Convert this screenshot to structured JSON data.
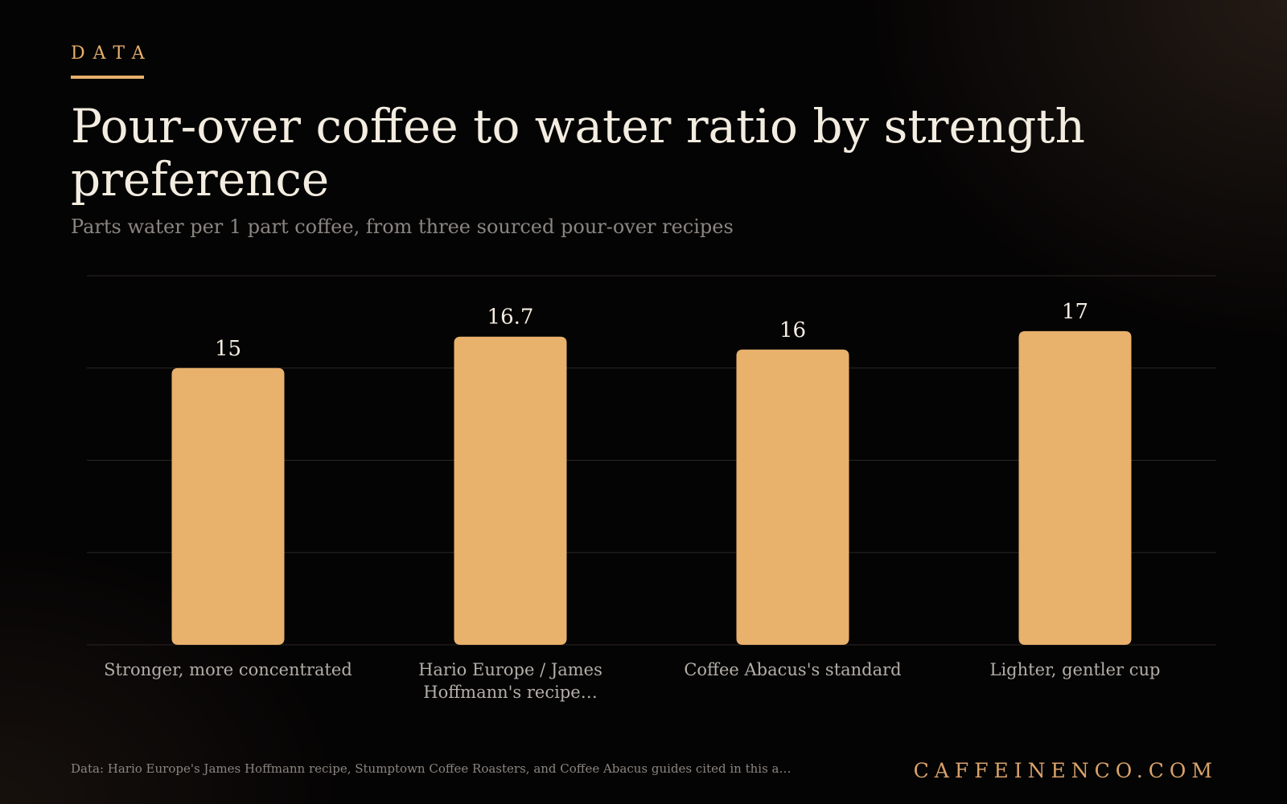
{
  "header": {
    "eyebrow": "DATA",
    "title": "Pour-over coffee to water ratio by strength preference",
    "subtitle": "Parts water per 1 part coffee, from three sourced pour-over recipes"
  },
  "footer": {
    "source": "Data: Hario Europe's James Hoffmann recipe, Stumptown Coffee Roasters, and Coffee Abacus guides cited in this a…",
    "brand": "CAFFEINENCO.COM"
  },
  "colors": {
    "accent": "#e8b06c",
    "bar": "#e8b16c",
    "background": "#050404",
    "title": "#f3ece0",
    "muted": "#8a8580",
    "grid": "#2a2624"
  },
  "chart_data": {
    "type": "bar",
    "categories": [
      "Stronger, more concentrated",
      "Hario Europe / James Hoffmann's recipe…",
      "Coffee Abacus's standard",
      "Lighter, gentler cup"
    ],
    "category_lines": [
      [
        "Stronger, more concentrated"
      ],
      [
        "Hario Europe / James",
        "Hoffmann's recipe…"
      ],
      [
        "Coffee Abacus's standard"
      ],
      [
        "Lighter, gentler cup"
      ]
    ],
    "values": [
      15,
      16.7,
      16,
      17
    ],
    "value_labels": [
      "15",
      "16.7",
      "16",
      "17"
    ],
    "ylim": [
      0,
      20
    ],
    "grid": true,
    "legend": false
  }
}
